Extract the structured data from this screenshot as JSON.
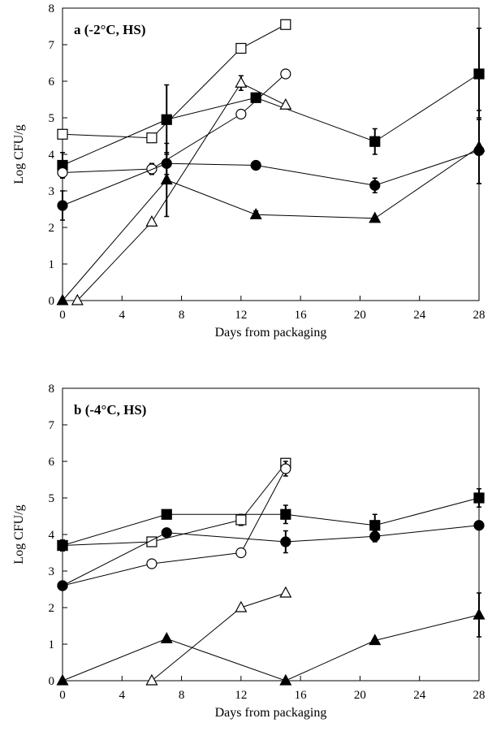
{
  "chart_data": [
    {
      "type": "scatter",
      "title": "a (-2°C, HS)",
      "xlabel": "Days from packaging",
      "ylabel": "Log CFU/g",
      "xlim": [
        0,
        28
      ],
      "ylim": [
        0,
        8
      ],
      "xticks": [
        "0",
        "4",
        "8",
        "12",
        "16",
        "20",
        "24",
        "28"
      ],
      "yticks": [
        "0",
        "1",
        "2",
        "3",
        "4",
        "5",
        "6",
        "7",
        "8"
      ],
      "legend": "none",
      "series": [
        {
          "marker": "open-square",
          "x": [
            0,
            6,
            12,
            15
          ],
          "y": [
            4.55,
            4.45,
            6.9,
            7.55
          ],
          "err": [
            0,
            0.1,
            0,
            0.05
          ]
        },
        {
          "marker": "filled-square",
          "x": [
            0,
            7,
            13,
            21,
            28
          ],
          "y": [
            3.7,
            4.95,
            5.55,
            4.35,
            6.2
          ],
          "err": [
            0.35,
            0.95,
            0,
            0.35,
            1.25
          ]
        },
        {
          "marker": "open-circle",
          "x": [
            0,
            6,
            12,
            15
          ],
          "y": [
            3.5,
            3.6,
            5.1,
            6.2
          ],
          "err": [
            0,
            0.15,
            0,
            0
          ]
        },
        {
          "marker": "filled-circle",
          "x": [
            0,
            7,
            13,
            21,
            28
          ],
          "y": [
            2.6,
            3.75,
            3.7,
            3.15,
            4.1
          ],
          "err": [
            0.4,
            0.3,
            0,
            0.2,
            0.9
          ]
        },
        {
          "marker": "open-triangle",
          "x": [
            1,
            6,
            12,
            15
          ],
          "y": [
            0,
            2.15,
            5.95,
            5.35
          ],
          "err": [
            0,
            0,
            0.2,
            0
          ]
        },
        {
          "marker": "filled-triangle",
          "x": [
            0,
            7,
            13,
            21,
            28
          ],
          "y": [
            0,
            3.3,
            2.35,
            2.25,
            4.2
          ],
          "err": [
            0,
            1.0,
            0.1,
            0,
            1.0
          ]
        }
      ]
    },
    {
      "type": "scatter",
      "title": "b (-4°C, HS)",
      "xlabel": "Days from packaging",
      "ylabel": "Log CFU/g",
      "xlim": [
        0,
        28
      ],
      "ylim": [
        0,
        8
      ],
      "xticks": [
        "0",
        "4",
        "8",
        "12",
        "16",
        "20",
        "24",
        "28"
      ],
      "yticks": [
        "0",
        "1",
        "2",
        "3",
        "4",
        "5",
        "6",
        "7",
        "8"
      ],
      "legend": "none",
      "series": [
        {
          "marker": "open-square",
          "x": [
            0,
            6,
            12,
            15
          ],
          "y": [
            3.7,
            3.8,
            4.4,
            5.95
          ],
          "err": [
            0,
            0,
            0.15,
            0.1
          ]
        },
        {
          "marker": "filled-square",
          "x": [
            0,
            7,
            15,
            21,
            28
          ],
          "y": [
            3.7,
            4.55,
            4.55,
            4.25,
            5.0
          ],
          "err": [
            0.15,
            0,
            0.25,
            0.3,
            0.25
          ]
        },
        {
          "marker": "open-circle",
          "x": [
            0,
            6,
            12,
            15
          ],
          "y": [
            2.6,
            3.2,
            3.5,
            5.8
          ],
          "err": [
            0,
            0,
            0,
            0.2
          ]
        },
        {
          "marker": "filled-circle",
          "x": [
            0,
            7,
            15,
            21,
            28
          ],
          "y": [
            2.6,
            4.05,
            3.8,
            3.95,
            4.25
          ],
          "err": [
            0,
            0,
            0.3,
            0.15,
            0
          ]
        },
        {
          "marker": "open-triangle",
          "x": [
            6,
            12,
            15
          ],
          "y": [
            0,
            2.0,
            2.4
          ],
          "err": [
            0,
            0,
            0
          ]
        },
        {
          "marker": "filled-triangle",
          "x": [
            0,
            7,
            15,
            21,
            28
          ],
          "y": [
            0,
            1.15,
            0,
            1.1,
            1.8
          ],
          "err": [
            0,
            0,
            0,
            0,
            0.6
          ]
        }
      ]
    }
  ]
}
